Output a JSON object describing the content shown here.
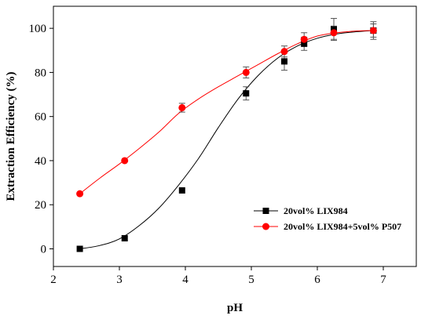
{
  "chart_data": {
    "type": "scatter",
    "xlabel": "pH",
    "ylabel": "Extraction Efficiency (%)",
    "xlim": [
      2,
      7.5
    ],
    "ylim": [
      -8,
      110
    ],
    "xticks": [
      2,
      3,
      4,
      5,
      6,
      7
    ],
    "yticks": [
      0,
      20,
      40,
      60,
      80,
      100
    ],
    "legend_position": "lower-right",
    "grid": false,
    "series": [
      {
        "name": "20vol% LIX984",
        "color": "#000000",
        "marker": "square",
        "x": [
          2.4,
          3.08,
          3.95,
          4.92,
          5.5,
          5.8,
          6.25,
          6.85
        ],
        "y": [
          0,
          4.8,
          26.5,
          70.5,
          85,
          93,
          99.5,
          99
        ],
        "yerr": [
          0,
          0,
          0,
          3,
          4,
          3,
          5,
          3
        ],
        "fit": [
          [
            2.4,
            0
          ],
          [
            2.7,
            1.5
          ],
          [
            3.0,
            4.5
          ],
          [
            3.3,
            10.5
          ],
          [
            3.6,
            18.5
          ],
          [
            3.9,
            29
          ],
          [
            4.2,
            41
          ],
          [
            4.5,
            55
          ],
          [
            4.8,
            68
          ],
          [
            5.1,
            78.5
          ],
          [
            5.4,
            86.5
          ],
          [
            5.7,
            92
          ],
          [
            6.0,
            95.5
          ],
          [
            6.3,
            97.5
          ],
          [
            6.6,
            98.5
          ],
          [
            6.85,
            99
          ]
        ]
      },
      {
        "name": "20vol% LIX984+5vol% P507",
        "color": "#ff0000",
        "marker": "circle",
        "x": [
          2.4,
          3.08,
          3.95,
          4.92,
          5.5,
          5.8,
          6.25,
          6.85
        ],
        "y": [
          25,
          40,
          64,
          80,
          89.5,
          95,
          98,
          99
        ],
        "yerr": [
          0,
          0,
          2,
          2.5,
          2.5,
          3,
          3,
          4
        ],
        "fit": [
          [
            2.4,
            25
          ],
          [
            2.7,
            32
          ],
          [
            3.0,
            38.5
          ],
          [
            3.3,
            45.5
          ],
          [
            3.6,
            53
          ],
          [
            3.9,
            61.5
          ],
          [
            4.2,
            68
          ],
          [
            4.5,
            73.5
          ],
          [
            4.8,
            78.5
          ],
          [
            5.1,
            83.5
          ],
          [
            5.4,
            88.5
          ],
          [
            5.7,
            93
          ],
          [
            6.0,
            96.5
          ],
          [
            6.3,
            98
          ],
          [
            6.6,
            98.8
          ],
          [
            6.85,
            99
          ]
        ]
      }
    ]
  }
}
